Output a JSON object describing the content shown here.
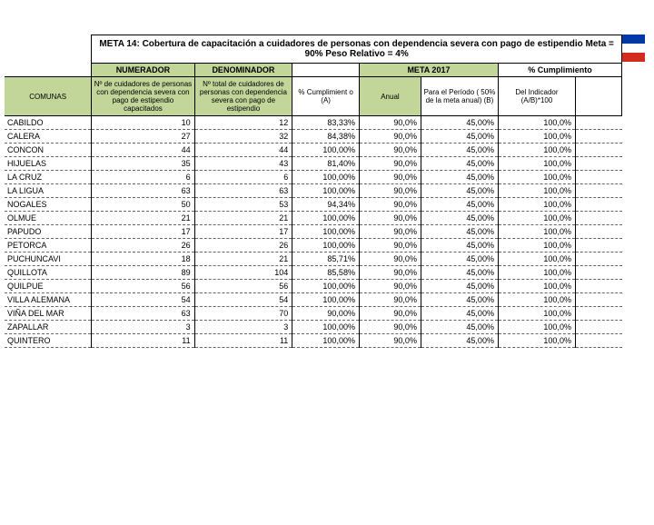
{
  "title": "META 14: Cobertura de capacitación a cuidadores de personas con dependencia severa con pago de estipendio  Meta = 90%    Peso Relativo = 4%",
  "headers": {
    "numerador": "NUMERADOR",
    "denominador": "DENOMINADOR",
    "meta2017": "META 2017",
    "cumplimiento": "% Cumplimiento",
    "comunas": "COMUNAS",
    "num_desc": "Nº de cuidadores de personas con dependencia severa con pago de estipendio capacitados",
    "den_desc": "Nº total de cuidadores de personas con dependencia severa con pago de estipendio",
    "pct_desc": "% Cumplimient o (A)",
    "anual": "Anual",
    "periodo": "Para el Período ( 50% de la meta anual) (B)",
    "indicador": "Del Indicador (A/B)*100"
  },
  "colors": {
    "header_bg": "#c2d69a",
    "border": "#000000",
    "dashed": "#999999"
  },
  "rows": [
    {
      "comuna": "CABILDO",
      "num": "10",
      "den": "12",
      "pct": "83,33%",
      "anual": "90,0%",
      "periodo": "45,00%",
      "ind": "100,0%"
    },
    {
      "comuna": "CALERA",
      "num": "27",
      "den": "32",
      "pct": "84,38%",
      "anual": "90,0%",
      "periodo": "45,00%",
      "ind": "100,0%"
    },
    {
      "comuna": "CONCON",
      "num": "44",
      "den": "44",
      "pct": "100,00%",
      "anual": "90,0%",
      "periodo": "45,00%",
      "ind": "100,0%"
    },
    {
      "comuna": "HIJUELAS",
      "num": "35",
      "den": "43",
      "pct": "81,40%",
      "anual": "90,0%",
      "periodo": "45,00%",
      "ind": "100,0%"
    },
    {
      "comuna": "LA CRUZ",
      "num": "6",
      "den": "6",
      "pct": "100,00%",
      "anual": "90,0%",
      "periodo": "45,00%",
      "ind": "100,0%"
    },
    {
      "comuna": "LA LIGUA",
      "num": "63",
      "den": "63",
      "pct": "100,00%",
      "anual": "90,0%",
      "periodo": "45,00%",
      "ind": "100,0%"
    },
    {
      "comuna": "NOGALES",
      "num": "50",
      "den": "53",
      "pct": "94,34%",
      "anual": "90,0%",
      "periodo": "45,00%",
      "ind": "100,0%"
    },
    {
      "comuna": "OLMUE",
      "num": "21",
      "den": "21",
      "pct": "100,00%",
      "anual": "90,0%",
      "periodo": "45,00%",
      "ind": "100,0%"
    },
    {
      "comuna": "PAPUDO",
      "num": "17",
      "den": "17",
      "pct": "100,00%",
      "anual": "90,0%",
      "periodo": "45,00%",
      "ind": "100,0%"
    },
    {
      "comuna": "PETORCA",
      "num": "26",
      "den": "26",
      "pct": "100,00%",
      "anual": "90,0%",
      "periodo": "45,00%",
      "ind": "100,0%"
    },
    {
      "comuna": "PUCHUNCAVI",
      "num": "18",
      "den": "21",
      "pct": "85,71%",
      "anual": "90,0%",
      "periodo": "45,00%",
      "ind": "100,0%"
    },
    {
      "comuna": "QUILLOTA",
      "num": "89",
      "den": "104",
      "pct": "85,58%",
      "anual": "90,0%",
      "periodo": "45,00%",
      "ind": "100,0%"
    },
    {
      "comuna": "QUILPUE",
      "num": "56",
      "den": "56",
      "pct": "100,00%",
      "anual": "90,0%",
      "periodo": "45,00%",
      "ind": "100,0%"
    },
    {
      "comuna": "VILLA ALEMANA",
      "num": "54",
      "den": "54",
      "pct": "100,00%",
      "anual": "90,0%",
      "periodo": "45,00%",
      "ind": "100,0%"
    },
    {
      "comuna": "VIÑA DEL MAR",
      "num": "63",
      "den": "70",
      "pct": "90,00%",
      "anual": "90,0%",
      "periodo": "45,00%",
      "ind": "100,0%"
    },
    {
      "comuna": "ZAPALLAR",
      "num": "3",
      "den": "3",
      "pct": "100,00%",
      "anual": "90,0%",
      "periodo": "45,00%",
      "ind": "100,0%"
    },
    {
      "comuna": "QUINTERO",
      "num": "11",
      "den": "11",
      "pct": "100,00%",
      "anual": "90,0%",
      "periodo": "45,00%",
      "ind": "100,0%"
    }
  ]
}
